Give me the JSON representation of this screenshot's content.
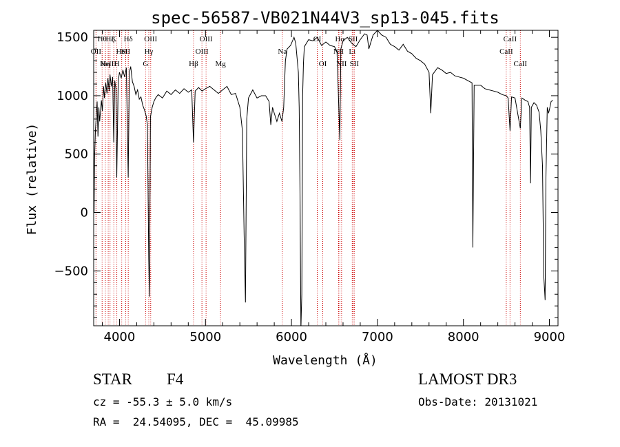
{
  "chart_data": {
    "type": "line",
    "title": "spec-56587-VB021N44V3_sp13-045.fits",
    "xlabel": "Wavelength (Å)",
    "ylabel": "Flux (relative)",
    "xlim": [
      3700,
      9100
    ],
    "ylim": [
      -970,
      1560
    ],
    "xticks": [
      4000,
      5000,
      6000,
      7000,
      8000,
      9000
    ],
    "yticks": [
      -500,
      0,
      500,
      1000,
      1500
    ],
    "grid": false,
    "series": [
      {
        "points": [
          [
            3700,
            500
          ],
          [
            3705,
            0
          ],
          [
            3710,
            450
          ],
          [
            3720,
            700
          ],
          [
            3740,
            950
          ],
          [
            3750,
            650
          ],
          [
            3760,
            900
          ],
          [
            3770,
            780
          ],
          [
            3790,
            960
          ],
          [
            3800,
            870
          ],
          [
            3815,
            1080
          ],
          [
            3825,
            980
          ],
          [
            3840,
            1110
          ],
          [
            3855,
            1020
          ],
          [
            3865,
            1150
          ],
          [
            3880,
            1040
          ],
          [
            3890,
            1180
          ],
          [
            3905,
            1080
          ],
          [
            3920,
            1160
          ],
          [
            3933,
            600
          ],
          [
            3945,
            1130
          ],
          [
            3958,
            1060
          ],
          [
            3968,
            300
          ],
          [
            3985,
            1120
          ],
          [
            4000,
            1200
          ],
          [
            4020,
            1150
          ],
          [
            4040,
            1220
          ],
          [
            4060,
            1160
          ],
          [
            4080,
            1240
          ],
          [
            4101,
            300
          ],
          [
            4115,
            1200
          ],
          [
            4130,
            1250
          ],
          [
            4150,
            1120
          ],
          [
            4170,
            1080
          ],
          [
            4190,
            1010
          ],
          [
            4210,
            1050
          ],
          [
            4230,
            970
          ],
          [
            4250,
            990
          ],
          [
            4270,
            920
          ],
          [
            4290,
            880
          ],
          [
            4310,
            830
          ],
          [
            4325,
            750
          ],
          [
            4340,
            -400
          ],
          [
            4348,
            -720
          ],
          [
            4360,
            820
          ],
          [
            4380,
            900
          ],
          [
            4400,
            950
          ],
          [
            4420,
            980
          ],
          [
            4450,
            1010
          ],
          [
            4500,
            980
          ],
          [
            4550,
            1040
          ],
          [
            4600,
            1010
          ],
          [
            4650,
            1050
          ],
          [
            4700,
            1020
          ],
          [
            4750,
            1060
          ],
          [
            4800,
            1030
          ],
          [
            4840,
            1050
          ],
          [
            4861,
            600
          ],
          [
            4880,
            1040
          ],
          [
            4920,
            1070
          ],
          [
            4960,
            1040
          ],
          [
            5000,
            1060
          ],
          [
            5050,
            1080
          ],
          [
            5100,
            1050
          ],
          [
            5150,
            1020
          ],
          [
            5200,
            1050
          ],
          [
            5250,
            1080
          ],
          [
            5300,
            1010
          ],
          [
            5350,
            1020
          ],
          [
            5400,
            900
          ],
          [
            5430,
            700
          ],
          [
            5450,
            -200
          ],
          [
            5465,
            -770
          ],
          [
            5480,
            800
          ],
          [
            5500,
            980
          ],
          [
            5550,
            1050
          ],
          [
            5600,
            980
          ],
          [
            5650,
            1000
          ],
          [
            5700,
            1000
          ],
          [
            5740,
            950
          ],
          [
            5760,
            750
          ],
          [
            5780,
            900
          ],
          [
            5800,
            850
          ],
          [
            5830,
            780
          ],
          [
            5860,
            850
          ],
          [
            5890,
            780
          ],
          [
            5910,
            900
          ],
          [
            5930,
            1300
          ],
          [
            5950,
            1400
          ],
          [
            5990,
            1430
          ],
          [
            6030,
            1500
          ],
          [
            6050,
            1450
          ],
          [
            6080,
            1200
          ],
          [
            6090,
            900
          ],
          [
            6100,
            100
          ],
          [
            6110,
            -1000
          ],
          [
            6120,
            -700
          ],
          [
            6130,
            1000
          ],
          [
            6140,
            1280
          ],
          [
            6150,
            1420
          ],
          [
            6200,
            1480
          ],
          [
            6250,
            1470
          ],
          [
            6300,
            1500
          ],
          [
            6350,
            1430
          ],
          [
            6400,
            1460
          ],
          [
            6450,
            1430
          ],
          [
            6500,
            1420
          ],
          [
            6530,
            1380
          ],
          [
            6563,
            620
          ],
          [
            6575,
            1400
          ],
          [
            6600,
            1470
          ],
          [
            6650,
            1500
          ],
          [
            6700,
            1450
          ],
          [
            6750,
            1420
          ],
          [
            6800,
            1480
          ],
          [
            6850,
            1530
          ],
          [
            6880,
            1520
          ],
          [
            6900,
            1400
          ],
          [
            6920,
            1450
          ],
          [
            6950,
            1520
          ],
          [
            7000,
            1560
          ],
          [
            7050,
            1520
          ],
          [
            7100,
            1500
          ],
          [
            7150,
            1440
          ],
          [
            7200,
            1420
          ],
          [
            7250,
            1390
          ],
          [
            7300,
            1440
          ],
          [
            7350,
            1380
          ],
          [
            7400,
            1360
          ],
          [
            7450,
            1320
          ],
          [
            7500,
            1300
          ],
          [
            7550,
            1270
          ],
          [
            7600,
            1200
          ],
          [
            7620,
            850
          ],
          [
            7640,
            1180
          ],
          [
            7700,
            1240
          ],
          [
            7750,
            1220
          ],
          [
            7800,
            1190
          ],
          [
            7850,
            1200
          ],
          [
            7900,
            1170
          ],
          [
            7950,
            1160
          ],
          [
            8000,
            1150
          ],
          [
            8050,
            1130
          ],
          [
            8100,
            1110
          ],
          [
            8110,
            -300
          ],
          [
            8125,
            1090
          ],
          [
            8200,
            1090
          ],
          [
            8250,
            1060
          ],
          [
            8300,
            1050
          ],
          [
            8350,
            1040
          ],
          [
            8400,
            1030
          ],
          [
            8450,
            1010
          ],
          [
            8500,
            1000
          ],
          [
            8520,
            980
          ],
          [
            8542,
            700
          ],
          [
            8560,
            990
          ],
          [
            8600,
            980
          ],
          [
            8662,
            720
          ],
          [
            8680,
            980
          ],
          [
            8720,
            960
          ],
          [
            8750,
            950
          ],
          [
            8770,
            900
          ],
          [
            8780,
            250
          ],
          [
            8790,
            900
          ],
          [
            8820,
            940
          ],
          [
            8850,
            920
          ],
          [
            8880,
            860
          ],
          [
            8900,
            700
          ],
          [
            8920,
            400
          ],
          [
            8935,
            -550
          ],
          [
            8950,
            -750
          ],
          [
            8960,
            300
          ],
          [
            8975,
            900
          ],
          [
            8990,
            850
          ],
          [
            9000,
            880
          ],
          [
            9020,
            950
          ],
          [
            9040,
            960
          ]
        ]
      }
    ],
    "lines": [
      {
        "x": 3727,
        "labels": [
          "OII"
        ],
        "row": 1
      },
      {
        "x": 3798,
        "labels": [
          "Hθ"
        ],
        "row": 0
      },
      {
        "x": 3836,
        "labels": [
          "Hη"
        ],
        "row": 2
      },
      {
        "x": 3869,
        "labels": [
          "NeIII"
        ],
        "row": 2
      },
      {
        "x": 3890,
        "labels": [
          "Hζ"
        ],
        "row": 0
      },
      {
        "x": 3934,
        "labels": [
          "K"
        ],
        "row": 0
      },
      {
        "x": 3969,
        "labels": [
          "H"
        ],
        "row": 2
      },
      {
        "x": 4026,
        "labels": [
          "HeI"
        ],
        "row": 1
      },
      {
        "x": 4072,
        "labels": [
          "SII"
        ],
        "row": 1
      },
      {
        "x": 4102,
        "labels": [
          "Hδ"
        ],
        "row": 0
      },
      {
        "x": 4304,
        "labels": [
          "G"
        ],
        "row": 2
      },
      {
        "x": 4341,
        "labels": [
          "Hγ"
        ],
        "row": 1
      },
      {
        "x": 4363,
        "labels": [
          "OIII"
        ],
        "row": 0
      },
      {
        "x": 4861,
        "labels": [
          "Hβ"
        ],
        "row": 2
      },
      {
        "x": 4959,
        "labels": [
          "OIII"
        ],
        "row": 1
      },
      {
        "x": 5007,
        "labels": [
          "OIII"
        ],
        "row": 0
      },
      {
        "x": 5175,
        "labels": [
          "Mg"
        ],
        "row": 2
      },
      {
        "x": 5894,
        "labels": [
          "Na"
        ],
        "row": 1
      },
      {
        "x": 6300,
        "labels": [
          "OI"
        ],
        "row": 0
      },
      {
        "x": 6364,
        "labels": [
          "OI"
        ],
        "row": 2
      },
      {
        "x": 6548,
        "labels": [
          "NII"
        ],
        "row": 1
      },
      {
        "x": 6563,
        "labels": [
          "Hα"
        ],
        "row": 0
      },
      {
        "x": 6583,
        "labels": [
          "NII"
        ],
        "row": 2
      },
      {
        "x": 6707,
        "labels": [
          "Li"
        ],
        "row": 1
      },
      {
        "x": 6717,
        "labels": [
          "SII"
        ],
        "row": 0
      },
      {
        "x": 6731,
        "labels": [
          "SII"
        ],
        "row": 2
      },
      {
        "x": 8498,
        "labels": [
          "CaII"
        ],
        "row": 1
      },
      {
        "x": 8542,
        "labels": [
          "CaII"
        ],
        "row": 0
      },
      {
        "x": 8662,
        "labels": [
          "CaII"
        ],
        "row": 2
      }
    ],
    "colors": {
      "spectrum": "#000000",
      "lines": "#cc0000"
    }
  },
  "info": {
    "object_class": "STAR",
    "subclass": "F4",
    "survey": "LAMOST DR3",
    "cz": "cz = -55.3 ± 5.0 km/s",
    "obs_date": "Obs-Date: 20131021",
    "coords": "RA =  24.54095, DEC =  45.09985"
  }
}
